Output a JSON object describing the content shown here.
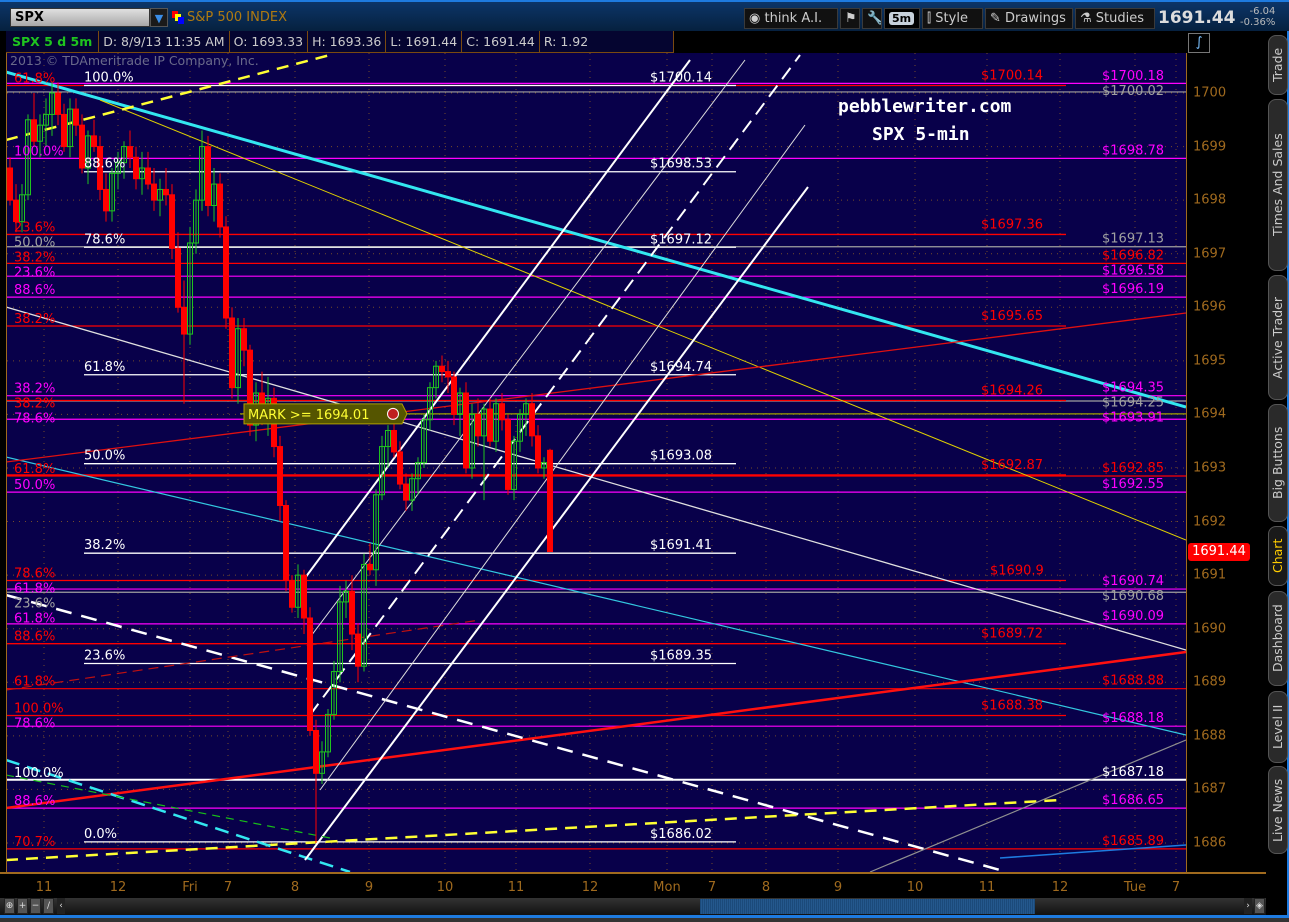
{
  "header": {
    "symbol": "SPX",
    "symbol_name": "S&P 500 INDEX",
    "buttons": {
      "think_ai": "think A.I.",
      "interval": "5m",
      "style": "Style",
      "drawings": "Drawings",
      "studies": "Studies"
    },
    "last_price": "1691.44",
    "change": "-6.04",
    "change_pct": "-0.36%"
  },
  "info_bar": {
    "title": "SPX 5 d 5m",
    "date": "D: 8/9/13 11:35 AM",
    "open": "O: 1693.33",
    "high": "H: 1693.36",
    "low": "L: 1691.44",
    "close": "C: 1691.44",
    "range": "R: 1.92"
  },
  "side_tabs": [
    "Trade",
    "Times And Sales",
    "Active Trader",
    "Big Buttons",
    "Chart",
    "Dashboard",
    "Level II",
    "Live News"
  ],
  "active_side_tab": "Chart",
  "colors": {
    "background": "#08004a",
    "axis": "#a06a1e",
    "up": "#1fc41f",
    "down": "#ff0000",
    "fib_red": "#ff0000",
    "fib_magenta": "#ff00ff",
    "fib_gray": "#a0a0a0",
    "fib_white": "#ffffff",
    "alert": "#ffff33"
  },
  "chart_data": {
    "type": "candlestick",
    "symbol": "SPX",
    "interval": "5m",
    "watermark": "2013 © TDAmeritrade IP Company, Inc.",
    "annotations": [
      "pebblewriter.com",
      "SPX 5-min"
    ],
    "ylim": [
      1685.6,
      1700.6
    ],
    "y_ticks": [
      1686,
      1687,
      1688,
      1689,
      1690,
      1691,
      1692,
      1693,
      1694,
      1695,
      1696,
      1697,
      1698,
      1699,
      1700
    ],
    "x_ticks": [
      "11",
      "12",
      "Fri",
      "7",
      "8",
      "9",
      "10",
      "11",
      "12",
      "Mon",
      "7",
      "8",
      "9",
      "10",
      "11",
      "12",
      "Tue",
      "7"
    ],
    "grid": true,
    "last_price": 1691.44,
    "candles_ohlc": [
      [
        1698.6,
        1698.8,
        1697.9,
        1698.0
      ],
      [
        1698.0,
        1698.3,
        1697.4,
        1697.6
      ],
      [
        1697.6,
        1698.3,
        1697.4,
        1698.1
      ],
      [
        1698.1,
        1699.6,
        1698.0,
        1699.5
      ],
      [
        1699.5,
        1700.0,
        1699.0,
        1699.1
      ],
      [
        1699.1,
        1699.6,
        1698.8,
        1699.4
      ],
      [
        1699.4,
        1699.9,
        1699.0,
        1699.6
      ],
      [
        1699.6,
        1700.2,
        1699.2,
        1700.0
      ],
      [
        1700.0,
        1700.2,
        1699.4,
        1699.6
      ],
      [
        1699.6,
        1699.8,
        1698.9,
        1699.0
      ],
      [
        1699.0,
        1699.9,
        1698.8,
        1699.7
      ],
      [
        1699.7,
        1699.9,
        1699.2,
        1699.4
      ],
      [
        1699.4,
        1699.6,
        1698.5,
        1698.6
      ],
      [
        1698.6,
        1699.3,
        1698.3,
        1699.2
      ],
      [
        1699.2,
        1699.5,
        1698.9,
        1699.0
      ],
      [
        1699.0,
        1699.2,
        1698.0,
        1698.2
      ],
      [
        1698.2,
        1698.5,
        1697.6,
        1697.8
      ],
      [
        1697.8,
        1698.6,
        1697.6,
        1698.5
      ],
      [
        1698.5,
        1698.9,
        1698.2,
        1698.7
      ],
      [
        1698.7,
        1699.1,
        1698.4,
        1699.0
      ],
      [
        1699.0,
        1699.3,
        1698.6,
        1698.8
      ],
      [
        1698.8,
        1699.0,
        1698.2,
        1698.4
      ],
      [
        1698.4,
        1698.9,
        1698.1,
        1698.6
      ],
      [
        1698.6,
        1698.9,
        1698.2,
        1698.3
      ],
      [
        1698.3,
        1698.6,
        1697.8,
        1698.0
      ],
      [
        1698.0,
        1698.4,
        1697.7,
        1698.2
      ],
      [
        1698.2,
        1698.6,
        1697.9,
        1698.1
      ],
      [
        1698.1,
        1698.3,
        1696.9,
        1697.1
      ],
      [
        1697.1,
        1697.4,
        1695.9,
        1696.0
      ],
      [
        1696.0,
        1696.5,
        1694.2,
        1695.5
      ],
      [
        1695.5,
        1697.5,
        1695.3,
        1697.2
      ],
      [
        1697.2,
        1698.2,
        1697.0,
        1698.0
      ],
      [
        1698.0,
        1699.3,
        1697.8,
        1699.0
      ],
      [
        1699.0,
        1699.2,
        1697.7,
        1697.9
      ],
      [
        1697.9,
        1698.6,
        1697.6,
        1698.3
      ],
      [
        1698.3,
        1698.5,
        1697.3,
        1697.5
      ],
      [
        1697.5,
        1697.7,
        1695.6,
        1695.8
      ],
      [
        1695.8,
        1696.0,
        1694.3,
        1694.5
      ],
      [
        1694.5,
        1695.8,
        1694.2,
        1695.6
      ],
      [
        1695.6,
        1695.8,
        1694.9,
        1695.2
      ],
      [
        1695.2,
        1695.3,
        1693.6,
        1693.8
      ],
      [
        1693.8,
        1694.6,
        1693.5,
        1694.4
      ],
      [
        1694.4,
        1694.8,
        1693.8,
        1694.1
      ],
      [
        1694.1,
        1694.7,
        1693.6,
        1694.3
      ],
      [
        1694.3,
        1694.5,
        1693.2,
        1693.4
      ],
      [
        1693.4,
        1693.6,
        1692.0,
        1692.3
      ],
      [
        1692.3,
        1692.4,
        1690.7,
        1690.9
      ],
      [
        1690.9,
        1691.0,
        1690.3,
        1690.4
      ],
      [
        1690.4,
        1691.2,
        1690.2,
        1691.0
      ],
      [
        1691.0,
        1691.1,
        1689.9,
        1690.2
      ],
      [
        1690.2,
        1690.4,
        1688.0,
        1688.1
      ],
      [
        1688.1,
        1688.3,
        1686.0,
        1687.3
      ],
      [
        1687.3,
        1687.9,
        1687.1,
        1687.7
      ],
      [
        1687.7,
        1688.5,
        1687.6,
        1688.4
      ],
      [
        1688.4,
        1689.4,
        1688.3,
        1689.2
      ],
      [
        1689.2,
        1690.8,
        1689.0,
        1690.5
      ],
      [
        1690.5,
        1690.9,
        1690.2,
        1690.7
      ],
      [
        1690.7,
        1691.0,
        1689.6,
        1689.9
      ],
      [
        1689.9,
        1690.1,
        1689.0,
        1689.3
      ],
      [
        1689.3,
        1691.4,
        1689.2,
        1691.2
      ],
      [
        1691.2,
        1691.6,
        1691.0,
        1691.1
      ],
      [
        1691.1,
        1692.6,
        1690.8,
        1692.5
      ],
      [
        1692.5,
        1693.6,
        1692.4,
        1693.4
      ],
      [
        1693.4,
        1693.8,
        1693.0,
        1693.7
      ],
      [
        1693.7,
        1693.9,
        1693.2,
        1693.3
      ],
      [
        1693.3,
        1693.5,
        1692.6,
        1692.7
      ],
      [
        1692.7,
        1692.9,
        1692.2,
        1692.4
      ],
      [
        1692.4,
        1692.9,
        1692.2,
        1692.8
      ],
      [
        1692.8,
        1693.2,
        1692.5,
        1693.1
      ],
      [
        1693.1,
        1694.0,
        1693.0,
        1693.9
      ],
      [
        1693.9,
        1694.6,
        1693.7,
        1694.5
      ],
      [
        1694.5,
        1695.0,
        1694.3,
        1694.9
      ],
      [
        1694.9,
        1695.1,
        1694.6,
        1694.8
      ],
      [
        1694.8,
        1695.0,
        1694.4,
        1694.7
      ],
      [
        1694.7,
        1694.8,
        1693.8,
        1694.0
      ],
      [
        1694.0,
        1694.5,
        1693.6,
        1694.4
      ],
      [
        1694.4,
        1694.6,
        1692.9,
        1693.0
      ],
      [
        1693.0,
        1694.2,
        1692.8,
        1694.0
      ],
      [
        1694.0,
        1694.3,
        1693.4,
        1693.6
      ],
      [
        1693.6,
        1694.2,
        1692.4,
        1694.1
      ],
      [
        1694.1,
        1694.3,
        1693.4,
        1693.5
      ],
      [
        1693.5,
        1694.3,
        1693.3,
        1694.2
      ],
      [
        1694.2,
        1694.4,
        1693.7,
        1693.9
      ],
      [
        1693.9,
        1694.0,
        1692.5,
        1692.6
      ],
      [
        1692.6,
        1693.6,
        1692.4,
        1693.5
      ],
      [
        1693.5,
        1694.1,
        1693.3,
        1694.0
      ],
      [
        1694.0,
        1694.3,
        1693.6,
        1694.2
      ],
      [
        1694.2,
        1694.4,
        1693.4,
        1693.6
      ],
      [
        1693.6,
        1693.8,
        1692.9,
        1693.0
      ],
      [
        1693.0,
        1693.2,
        1692.8,
        1693.1
      ],
      [
        1693.33,
        1693.36,
        1691.44,
        1691.44
      ]
    ],
    "fib_white": [
      {
        "pct": "100.0%",
        "price": 1700.14,
        "label": "$1700.14"
      },
      {
        "pct": "88.6%",
        "price": 1698.53,
        "label": "$1698.53"
      },
      {
        "pct": "78.6%",
        "price": 1697.12,
        "label": "$1697.12"
      },
      {
        "pct": "61.8%",
        "price": 1694.74,
        "label": "$1694.74"
      },
      {
        "pct": "50.0%",
        "price": 1693.08,
        "label": "$1693.08"
      },
      {
        "pct": "38.2%",
        "price": 1691.41,
        "label": "$1691.41"
      },
      {
        "pct": "23.6%",
        "price": 1689.35,
        "label": "$1689.35"
      },
      {
        "pct": "0.0%",
        "price": 1686.02,
        "label": "$1686.02"
      }
    ],
    "fib_red": [
      {
        "price": 1700.14,
        "label": "$1700.14"
      },
      {
        "price": 1697.36,
        "label": "$1697.36"
      },
      {
        "price": 1695.65,
        "label": "$1695.65"
      },
      {
        "price": 1694.26,
        "label": "$1694.26"
      },
      {
        "price": 1692.87,
        "label": "$1692.87"
      },
      {
        "price": 1690.9,
        "label": "$1690.9"
      },
      {
        "price": 1689.72,
        "label": "$1689.72"
      },
      {
        "price": 1688.38,
        "label": "$1688.38"
      }
    ],
    "right_levels": [
      {
        "price": 1700.18,
        "label": "$1700.18",
        "color": "#ff00ff"
      },
      {
        "price": 1700.02,
        "label": "$1700.02",
        "color": "#a0a0a0"
      },
      {
        "price": 1698.78,
        "label": "$1698.78",
        "color": "#ff00ff"
      },
      {
        "price": 1697.13,
        "label": "$1697.13",
        "color": "#a0a0a0"
      },
      {
        "price": 1696.82,
        "label": "$1696.82",
        "color": "#ff0000"
      },
      {
        "price": 1696.58,
        "label": "$1696.58",
        "color": "#ff00ff"
      },
      {
        "price": 1696.19,
        "label": "$1696.19",
        "color": "#ff00ff"
      },
      {
        "price": 1694.35,
        "label": "$1694.35",
        "color": "#ff00ff"
      },
      {
        "price": 1694.25,
        "label": "$1694.25",
        "color": "#a0a0a0"
      },
      {
        "price": 1693.91,
        "label": "$1693.91",
        "color": "#ff00ff"
      },
      {
        "price": 1692.85,
        "label": "$1692.85",
        "color": "#ff0000"
      },
      {
        "price": 1692.55,
        "label": "$1692.55",
        "color": "#ff00ff"
      },
      {
        "price": 1690.74,
        "label": "$1690.74",
        "color": "#ff00ff"
      },
      {
        "price": 1690.68,
        "label": "$1690.68",
        "color": "#a0a0a0"
      },
      {
        "price": 1690.09,
        "label": "$1690.09",
        "color": "#ff00ff"
      },
      {
        "price": 1688.88,
        "label": "$1688.88",
        "color": "#ff0000"
      },
      {
        "price": 1688.18,
        "label": "$1688.18",
        "color": "#ff00ff"
      },
      {
        "price": 1687.18,
        "label": "$1687.18",
        "color": "#ffffff"
      },
      {
        "price": 1686.65,
        "label": "$1686.65",
        "color": "#ff00ff"
      },
      {
        "price": 1685.89,
        "label": "$1685.89",
        "color": "#ff0000"
      }
    ],
    "left_labels": [
      {
        "pct": "61.8%",
        "price": 1700.14,
        "color": "#ff0000"
      },
      {
        "pct": "100.0%",
        "price": 1698.78,
        "color": "#ff00ff"
      },
      {
        "pct": "23.6%",
        "price": 1697.36,
        "color": "#ff0000"
      },
      {
        "pct": "50.0%",
        "price": 1697.13,
        "color": "#a0a0a0"
      },
      {
        "pct": "38.2%",
        "price": 1696.82,
        "color": "#ff0000"
      },
      {
        "pct": "23.6%",
        "price": 1696.58,
        "color": "#ff00ff"
      },
      {
        "pct": "88.6%",
        "price": 1696.19,
        "color": "#ff00ff"
      },
      {
        "pct": "38.2%",
        "price": 1695.65,
        "color": "#ff0000"
      },
      {
        "pct": "38.2%",
        "price": 1694.35,
        "color": "#ff00ff"
      },
      {
        "pct": "38.2%",
        "price": 1694.25,
        "color": "#ff0000"
      },
      {
        "pct": "78.6%",
        "price": 1693.91,
        "color": "#ff00ff"
      },
      {
        "pct": "61.8%",
        "price": 1692.85,
        "color": "#ff0000"
      },
      {
        "pct": "50.0%",
        "price": 1692.55,
        "color": "#ff00ff"
      },
      {
        "pct": "78.6%",
        "price": 1690.9,
        "color": "#ff0000"
      },
      {
        "pct": "61.8%",
        "price": 1690.74,
        "color": "#ff00ff"
      },
      {
        "pct": "23.6%",
        "price": 1690.68,
        "color": "#a0a0a0"
      },
      {
        "pct": "61.8%",
        "price": 1690.09,
        "color": "#ff00ff"
      },
      {
        "pct": "88.6%",
        "price": 1689.72,
        "color": "#ff0000"
      },
      {
        "pct": "61.8%",
        "price": 1688.88,
        "color": "#ff0000"
      },
      {
        "pct": "100.0%",
        "price": 1688.38,
        "color": "#ff0000"
      },
      {
        "pct": "78.6%",
        "price": 1688.18,
        "color": "#ff00ff"
      },
      {
        "pct": "100.0%",
        "price": 1687.18,
        "color": "#ffffff"
      },
      {
        "pct": "88.6%",
        "price": 1686.65,
        "color": "#ff00ff"
      },
      {
        "pct": "70.7%",
        "price": 1685.89,
        "color": "#ff0000"
      }
    ],
    "alert": {
      "label": "MARK >= 1694.01",
      "price": 1694.01
    }
  }
}
